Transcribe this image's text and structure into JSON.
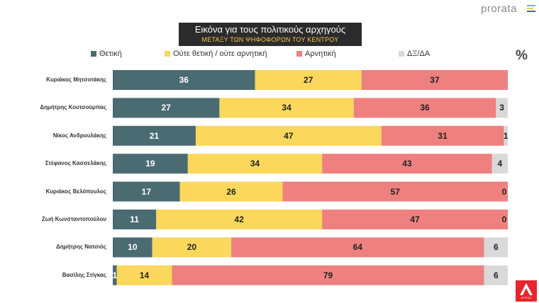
{
  "header": {
    "title": "Εικόνα για τους πολιτικούς αρχηγούς",
    "subtitle": "ΜΕΤΑΞΥ ΤΩΝ ΨΗΦΟΦΟΡΩΝ ΤΟΥ ΚΕΝΤΡΟΥ",
    "brand": "prorata",
    "unit_symbol": "%"
  },
  "logo": {
    "name": "ATTICA"
  },
  "chart_data": {
    "type": "bar",
    "orientation": "horizontal",
    "stacked": true,
    "xlim": [
      0,
      100
    ],
    "grid": false,
    "legend_position": "top",
    "categories": [
      "Κυριάκος Μητσοτάκης",
      "Δημήτρης Κουτσούμπας",
      "Νίκος Ανδρουλάκης",
      "Στέφανος Κασσελάκης",
      "Κυριάκος Βελόπουλος",
      "Ζωή Κωνσταντοπούλου",
      "Δημήτρης Νατσιός",
      "Βασίλης Στίγκας"
    ],
    "series": [
      {
        "name": "Θετική",
        "color": "#4b6b73",
        "label_color": "#ffffff",
        "values": [
          36,
          27,
          21,
          19,
          17,
          11,
          10,
          1
        ]
      },
      {
        "name": "Ούτε θετική / ούτε αρνητική",
        "color": "#fbd75b",
        "label_color": "#222222",
        "values": [
          27,
          34,
          47,
          34,
          26,
          42,
          20,
          14
        ]
      },
      {
        "name": "Αρνητική",
        "color": "#ef8080",
        "label_color": "#222222",
        "values": [
          37,
          36,
          31,
          43,
          57,
          47,
          64,
          79
        ]
      },
      {
        "name": "ΔΞ/ΔΑ",
        "color": "#d9d9d9",
        "label_color": "#222222",
        "values": [
          0,
          3,
          1,
          4,
          0,
          0,
          6,
          6
        ]
      }
    ]
  }
}
